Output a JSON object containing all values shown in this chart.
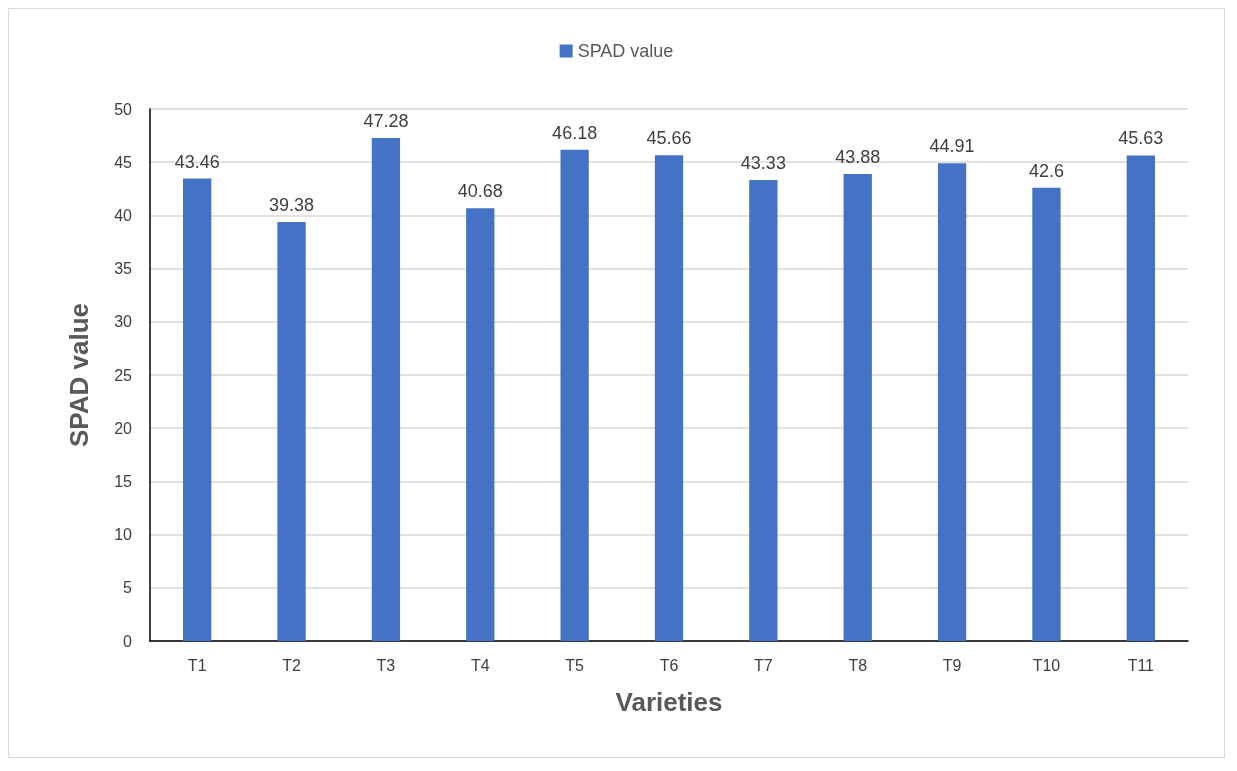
{
  "chart_data": {
    "type": "bar",
    "xlabel": "Varieties",
    "ylabel": "SPAD value",
    "categories": [
      "T1",
      "T2",
      "T3",
      "T4",
      "T5",
      "T6",
      "T7",
      "T8",
      "T9",
      "T10",
      "T11"
    ],
    "series": [
      {
        "name": "SPAD value",
        "color": "#4472c4",
        "values": [
          43.46,
          39.38,
          47.28,
          40.68,
          46.18,
          45.66,
          43.33,
          43.88,
          44.91,
          42.6,
          45.63
        ]
      }
    ],
    "ylim": [
      0,
      50
    ],
    "yticks": [
      0,
      5,
      10,
      15,
      20,
      25,
      30,
      35,
      40,
      45,
      50
    ],
    "grid": "y",
    "legend": "top",
    "data_labels": true
  }
}
